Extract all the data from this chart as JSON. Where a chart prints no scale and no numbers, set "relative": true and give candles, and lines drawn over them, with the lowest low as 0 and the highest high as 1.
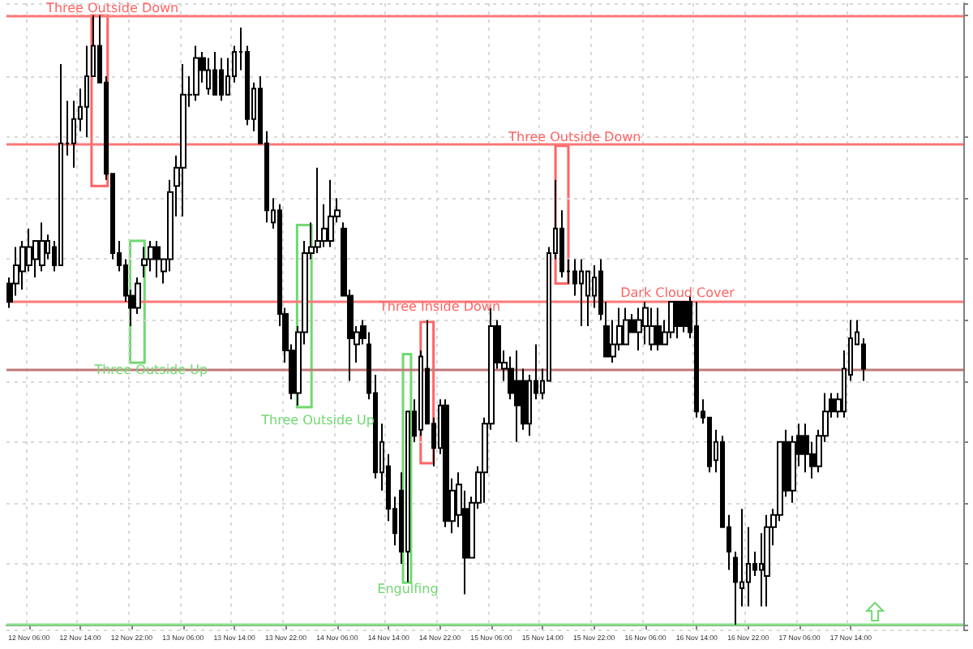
{
  "chart_data": {
    "type": "candlestick",
    "relative": true,
    "color": "#000000",
    "grid": true,
    "categories": [
      null,
      null,
      null,
      "12 Nov 06:00",
      null,
      null,
      null,
      null,
      null,
      null,
      null,
      "12 Nov 14:00",
      null,
      null,
      null,
      null,
      null,
      null,
      null,
      "12 Nov 22:00",
      null,
      null,
      null,
      null,
      null,
      null,
      null,
      "13 Nov 06:00",
      null,
      null,
      null,
      null,
      null,
      null,
      null,
      "13 Nov 14:00",
      null,
      null,
      null,
      null,
      null,
      null,
      null,
      "13 Nov 22:00",
      null,
      null,
      null,
      null,
      null,
      null,
      null,
      "14 Nov 06:00",
      null,
      null,
      null,
      null,
      null,
      null,
      null,
      "14 Nov 14:00",
      null,
      null,
      null,
      null,
      null,
      null,
      null,
      "14 Nov 22:00",
      null,
      null,
      null,
      null,
      null,
      null,
      null,
      "15 Nov 06:00",
      null,
      null,
      null,
      null,
      null,
      null,
      null,
      "15 Nov 14:00",
      null,
      null,
      null,
      null,
      null,
      null,
      null,
      "15 Nov 22:00",
      null,
      null,
      null,
      null,
      null,
      null,
      null,
      "16 Nov 06:00",
      null,
      null,
      null,
      null,
      null,
      null,
      null,
      "16 Nov 14:00",
      null,
      null,
      null,
      null,
      null,
      null,
      null,
      "16 Nov 22:00",
      null,
      null,
      null,
      null,
      null,
      null,
      null,
      "17 Nov 06:00",
      null,
      null,
      null,
      null,
      null,
      null,
      null,
      "17 Nov 14:00",
      null,
      null
    ],
    "ohlc": [
      [
        0.56,
        0.57,
        0.52,
        0.53
      ],
      [
        0.56,
        0.62,
        0.54,
        0.59
      ],
      [
        0.58,
        0.63,
        0.55,
        0.62
      ],
      [
        0.59,
        0.65,
        0.58,
        0.62
      ],
      [
        0.6,
        0.63,
        0.57,
        0.63
      ],
      [
        0.59,
        0.66,
        0.58,
        0.63
      ],
      [
        0.61,
        0.64,
        0.6,
        0.63
      ],
      [
        0.62,
        0.63,
        0.58,
        0.59
      ],
      [
        0.59,
        0.92,
        0.59,
        0.79
      ],
      [
        0.79,
        0.86,
        0.77,
        0.79
      ],
      [
        0.79,
        0.86,
        0.75,
        0.83
      ],
      [
        0.83,
        0.88,
        0.81,
        0.85
      ],
      [
        0.85,
        0.95,
        0.8,
        0.9
      ],
      [
        0.9,
        1,
        0.9,
        0.95
      ],
      [
        0.95,
        1,
        0.89,
        0.89
      ],
      [
        0.89,
        0.9,
        0.73,
        0.74
      ],
      [
        0.74,
        0.74,
        0.6,
        0.61
      ],
      [
        0.61,
        0.63,
        0.58,
        0.59
      ],
      [
        0.59,
        0.6,
        0.53,
        0.54
      ],
      [
        0.54,
        0.55,
        0.49,
        0.52
      ],
      [
        0.52,
        0.57,
        0.51,
        0.56
      ],
      [
        0.59,
        0.62,
        0.57,
        0.6
      ],
      [
        0.6,
        0.63,
        0.58,
        0.62
      ],
      [
        0.62,
        0.63,
        0.57,
        0.6
      ],
      [
        0.58,
        0.6,
        0.56,
        0.6
      ],
      [
        0.6,
        0.73,
        0.58,
        0.71
      ],
      [
        0.72,
        0.77,
        0.67,
        0.75
      ],
      [
        0.75,
        0.92,
        0.67,
        0.87
      ],
      [
        0.87,
        0.9,
        0.85,
        0.87
      ],
      [
        0.87,
        0.95,
        0.86,
        0.93
      ],
      [
        0.93,
        0.94,
        0.89,
        0.91
      ],
      [
        0.88,
        0.93,
        0.87,
        0.91
      ],
      [
        0.91,
        0.94,
        0.87,
        0.87
      ],
      [
        0.91,
        0.93,
        0.86,
        0.87
      ],
      [
        0.87,
        0.93,
        0.87,
        0.9
      ],
      [
        0.9,
        0.95,
        0.89,
        0.94
      ],
      [
        0.94,
        0.98,
        0.91,
        0.94
      ],
      [
        0.94,
        0.95,
        0.82,
        0.83
      ],
      [
        0.83,
        0.89,
        0.81,
        0.88
      ],
      [
        0.88,
        0.9,
        0.79,
        0.79
      ],
      [
        0.79,
        0.81,
        0.66,
        0.68
      ],
      [
        0.66,
        0.7,
        0.65,
        0.68
      ],
      [
        0.68,
        0.69,
        0.49,
        0.51
      ],
      [
        0.51,
        0.52,
        0.43,
        0.45
      ],
      [
        0.45,
        0.46,
        0.37,
        0.38
      ],
      [
        0.38,
        0.49,
        0.36,
        0.48
      ],
      [
        0.48,
        0.63,
        0.46,
        0.61
      ],
      [
        0.61,
        0.66,
        0.6,
        0.62
      ],
      [
        0.62,
        0.75,
        0.61,
        0.63
      ],
      [
        0.63,
        0.69,
        0.62,
        0.65
      ],
      [
        0.63,
        0.73,
        0.62,
        0.67
      ],
      [
        0.67,
        0.7,
        0.66,
        0.68
      ],
      [
        0.65,
        0.66,
        0.54,
        0.54
      ],
      [
        0.54,
        0.55,
        0.4,
        0.47
      ],
      [
        0.46,
        0.49,
        0.43,
        0.48
      ],
      [
        0.49,
        0.5,
        0.46,
        0.47
      ],
      [
        0.46,
        0.48,
        0.37,
        0.38
      ],
      [
        0.38,
        0.41,
        0.24,
        0.25
      ],
      [
        0.25,
        0.33,
        0.22,
        0.3
      ],
      [
        0.26,
        0.28,
        0.17,
        0.19
      ],
      [
        0.19,
        0.21,
        0.13,
        0.15
      ],
      [
        0.22,
        0.25,
        0.1,
        0.12
      ],
      [
        0.12,
        0.35,
        0.07,
        0.35
      ],
      [
        0.35,
        0.37,
        0.3,
        0.31
      ],
      [
        0.32,
        0.45,
        0.31,
        0.44
      ],
      [
        0.42,
        0.5,
        0.33,
        0.33
      ],
      [
        0.33,
        0.34,
        0.26,
        0.29
      ],
      [
        0.29,
        0.37,
        0.28,
        0.36
      ],
      [
        0.36,
        0.37,
        0.16,
        0.17
      ],
      [
        0.17,
        0.24,
        0.15,
        0.22
      ],
      [
        0.18,
        0.25,
        0.16,
        0.23
      ],
      [
        0.19,
        0.22,
        0.05,
        0.11
      ],
      [
        0.11,
        0.21,
        0.11,
        0.2
      ],
      [
        0.2,
        0.26,
        0.19,
        0.25
      ],
      [
        0.25,
        0.34,
        0.2,
        0.33
      ],
      [
        0.33,
        0.52,
        0.32,
        0.49
      ],
      [
        0.49,
        0.5,
        0.42,
        0.43
      ],
      [
        0.42,
        0.45,
        0.4,
        0.43
      ],
      [
        0.42,
        0.44,
        0.37,
        0.38
      ],
      [
        0.4,
        0.45,
        0.3,
        0.36
      ],
      [
        0.4,
        0.42,
        0.32,
        0.33
      ],
      [
        0.33,
        0.41,
        0.31,
        0.4
      ],
      [
        0.4,
        0.46,
        0.37,
        0.38
      ],
      [
        0.38,
        0.42,
        0.37,
        0.4
      ],
      [
        0.4,
        0.62,
        0.4,
        0.61
      ],
      [
        0.61,
        0.73,
        0.6,
        0.65
      ],
      [
        0.65,
        0.68,
        0.57,
        0.58
      ],
      [
        0.58,
        0.6,
        0.56,
        0.58
      ],
      [
        0.58,
        0.6,
        0.54,
        0.56
      ],
      [
        0.56,
        0.6,
        0.49,
        0.58
      ],
      [
        0.54,
        0.58,
        0.49,
        0.58
      ],
      [
        0.54,
        0.59,
        0.52,
        0.57
      ],
      [
        0.58,
        0.6,
        0.5,
        0.51
      ],
      [
        0.49,
        0.53,
        0.44,
        0.44
      ],
      [
        0.44,
        0.5,
        0.43,
        0.46
      ],
      [
        0.46,
        0.52,
        0.45,
        0.49
      ],
      [
        0.46,
        0.52,
        0.46,
        0.5
      ],
      [
        0.5,
        0.51,
        0.48,
        0.48
      ],
      [
        0.48,
        0.52,
        0.45,
        0.5
      ],
      [
        0.49,
        0.53,
        0.46,
        0.52
      ],
      [
        0.46,
        0.52,
        0.45,
        0.49
      ],
      [
        0.49,
        0.52,
        0.45,
        0.46
      ],
      [
        0.46,
        0.5,
        0.46,
        0.48
      ],
      [
        0.48,
        0.53,
        0.47,
        0.53
      ],
      [
        0.53,
        0.53,
        0.47,
        0.49
      ],
      [
        0.53,
        0.53,
        0.48,
        0.49
      ],
      [
        0.53,
        0.54,
        0.47,
        0.48
      ],
      [
        0.49,
        0.53,
        0.34,
        0.35
      ],
      [
        0.35,
        0.37,
        0.33,
        0.34
      ],
      [
        0.34,
        0.34,
        0.25,
        0.26
      ],
      [
        0.27,
        0.32,
        0.25,
        0.3
      ],
      [
        0.3,
        0.31,
        0.16,
        0.16
      ],
      [
        0.16,
        0.18,
        0.09,
        0.12
      ],
      [
        0.11,
        0.12,
        0,
        0.07
      ],
      [
        0.06,
        0.19,
        0.03,
        0.07
      ],
      [
        0.07,
        0.16,
        0.03,
        0.1
      ],
      [
        0.1,
        0.12,
        0.08,
        0.09
      ],
      [
        0.09,
        0.15,
        0.03,
        0.1
      ],
      [
        0.08,
        0.18,
        0.03,
        0.16
      ],
      [
        0.16,
        0.19,
        0.13,
        0.18
      ],
      [
        0.18,
        0.3,
        0.17,
        0.3
      ],
      [
        0.3,
        0.32,
        0.21,
        0.22
      ],
      [
        0.22,
        0.31,
        0.2,
        0.3
      ],
      [
        0.31,
        0.33,
        0.26,
        0.28
      ],
      [
        0.31,
        0.33,
        0.25,
        0.28
      ],
      [
        0.28,
        0.3,
        0.24,
        0.26
      ],
      [
        0.26,
        0.32,
        0.25,
        0.31
      ],
      [
        0.31,
        0.38,
        0.3,
        0.35
      ],
      [
        0.37,
        0.38,
        0.34,
        0.35
      ],
      [
        0.35,
        0.38,
        0.34,
        0.37
      ],
      [
        0.35,
        0.45,
        0.34,
        0.42
      ],
      [
        0.41,
        0.5,
        0.4,
        0.47
      ],
      [
        0.46,
        0.5,
        0.46,
        0.48
      ],
      [
        0.46,
        0.47,
        0.4,
        0.42
      ]
    ],
    "ref_lines": [
      {
        "axis": "y",
        "value": 1,
        "color": "#ff7878"
      },
      {
        "axis": "y",
        "value": 0.79,
        "color": "#ff7878"
      },
      {
        "axis": "y",
        "value": 0.53,
        "color": "#ff7878"
      },
      {
        "axis": "y",
        "value": 0,
        "color": "#88e088"
      },
      {
        "axis": "y",
        "value": 0.42,
        "color": "#c07878"
      }
    ],
    "annotations": [
      "Three Outside Down",
      "Three Outside Up",
      "Three Outside Up",
      "Three Inside Down",
      "Engulfing",
      "Three Outside Down",
      "Dark Cloud Cover"
    ]
  }
}
